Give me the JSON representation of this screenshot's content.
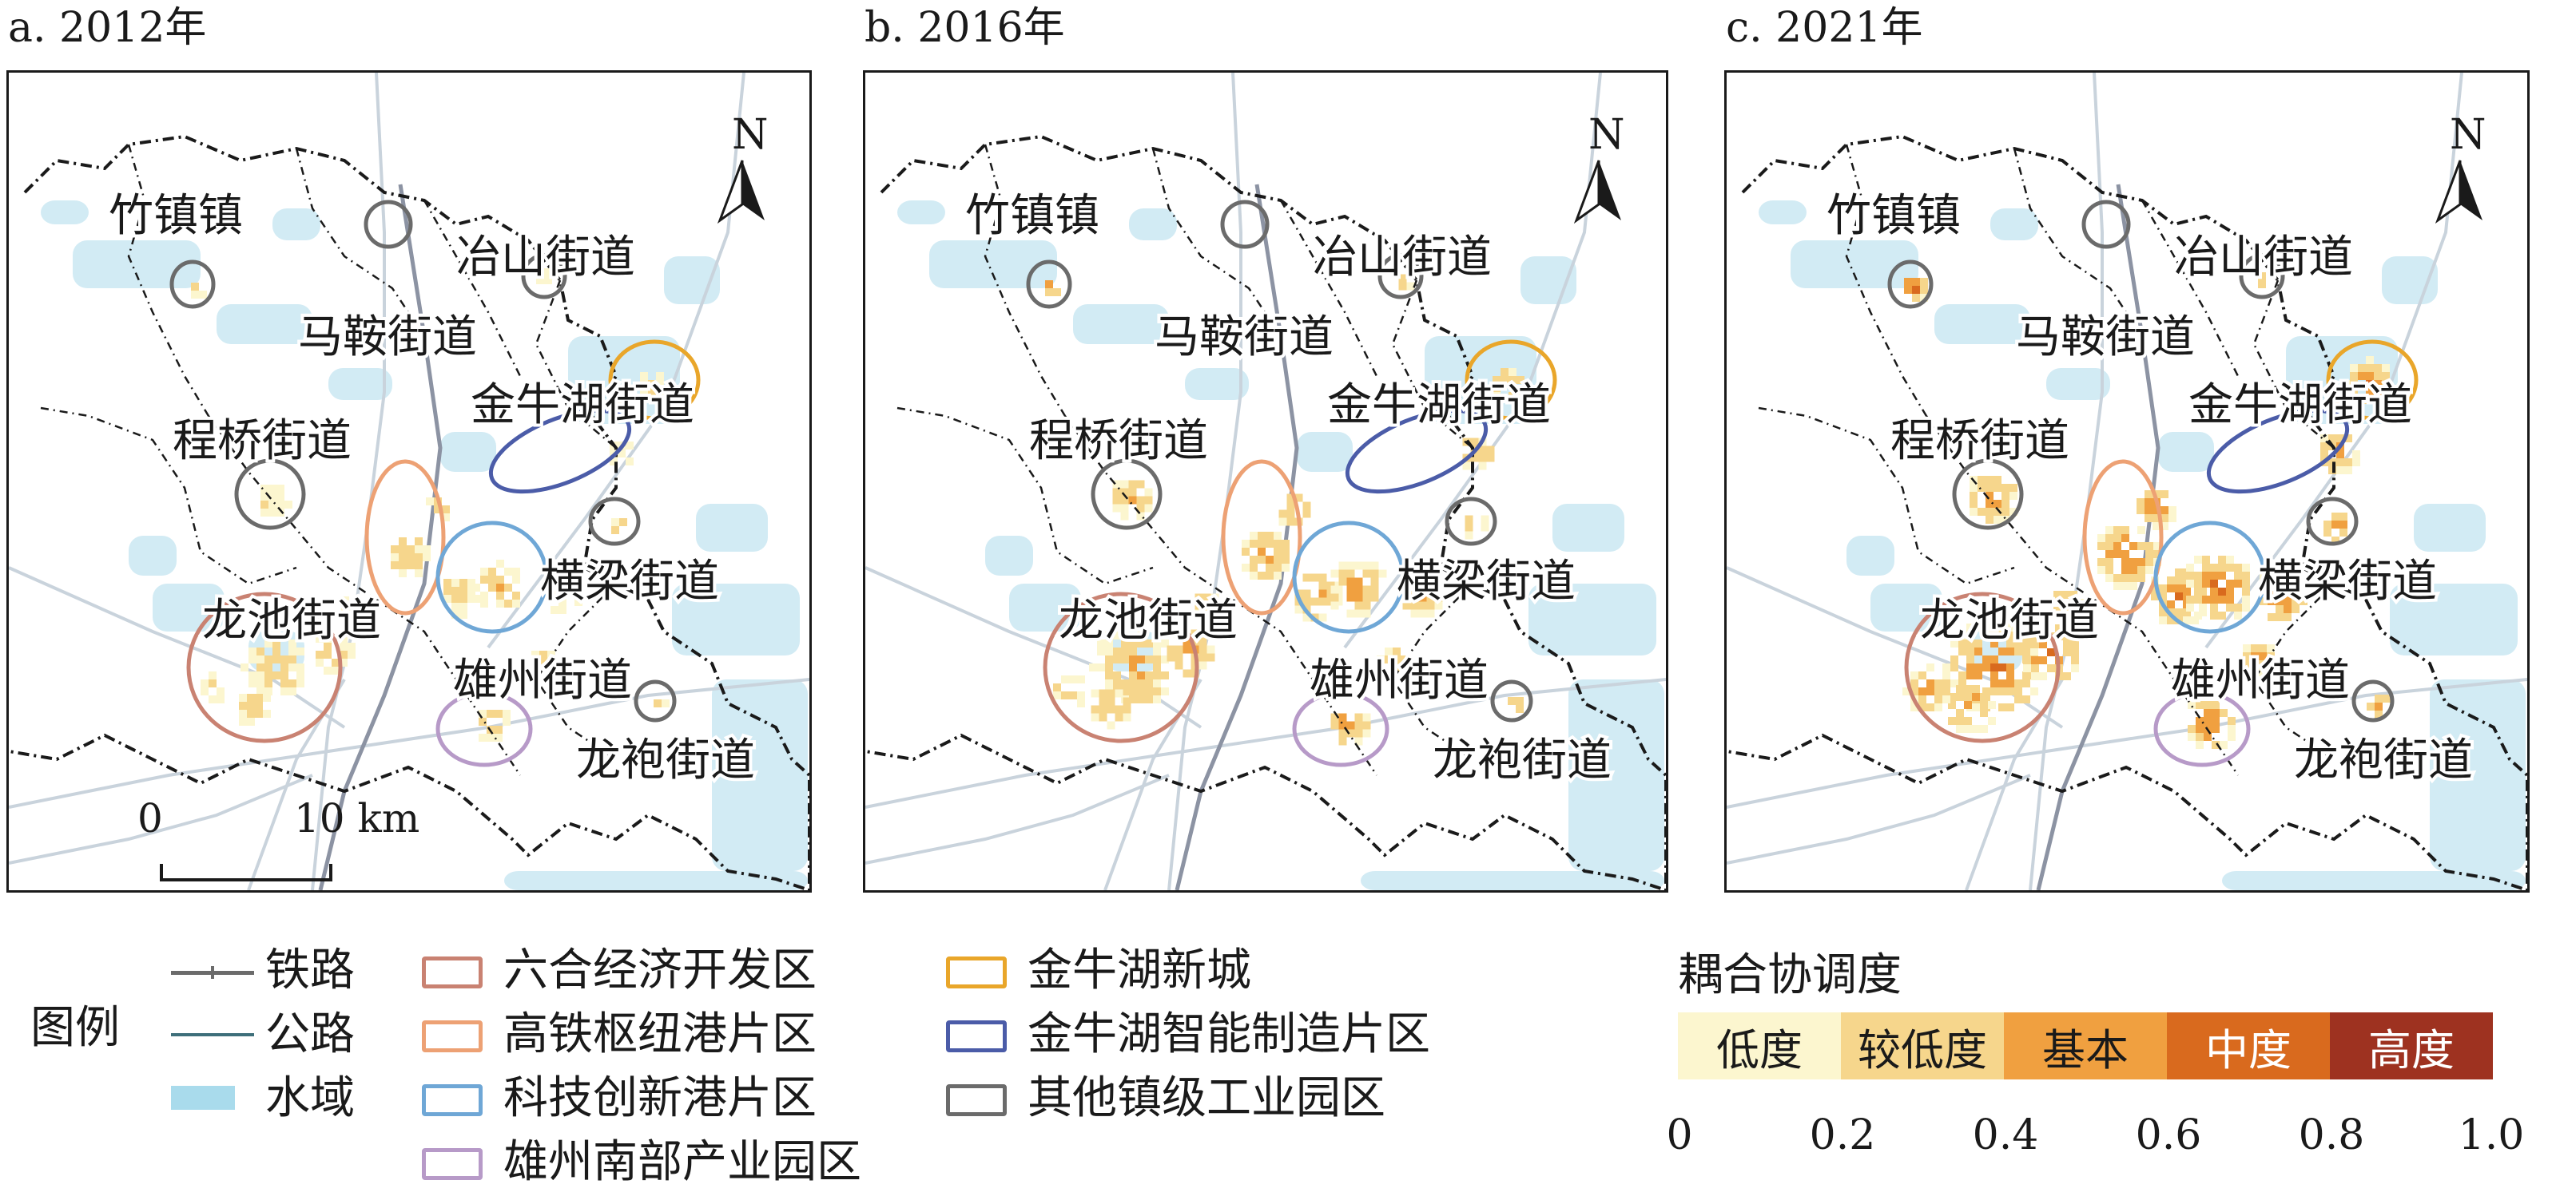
{
  "panels": [
    {
      "title": "a. 2012年",
      "year": 2012
    },
    {
      "title": "b. 2016年",
      "year": 2016
    },
    {
      "title": "c. 2021年",
      "year": 2021
    }
  ],
  "north_label": "N",
  "scale_bar": {
    "start": "0",
    "end": "10 km"
  },
  "place_labels": [
    "竹镇镇",
    "冶山街道",
    "马鞍街道",
    "金牛湖街道",
    "程桥街道",
    "横梁街道",
    "龙池街道",
    "雄州街道",
    "龙袍街道"
  ],
  "legend": {
    "title": "图例",
    "lines": [
      {
        "label": "铁路",
        "icon": "railway-line-icon",
        "color": "#6b6b6b"
      },
      {
        "label": "公路",
        "icon": "road-line-icon",
        "color": "#3e6f7a"
      },
      {
        "label": "水域",
        "icon": "water-fill-icon",
        "color": "#a9dbec"
      }
    ],
    "zones": [
      {
        "label": "六合经济开发区",
        "color": "#c98272"
      },
      {
        "label": "高铁枢纽港片区",
        "color": "#eda174"
      },
      {
        "label": "科技创新港片区",
        "color": "#6fa7d6"
      },
      {
        "label": "雄州南部产业园区",
        "color": "#b79ac8"
      },
      {
        "label": "金牛湖新城",
        "color": "#e9a62a"
      },
      {
        "label": "金牛湖智能制造片区",
        "color": "#4b5ca8"
      },
      {
        "label": "其他镇级工业园区",
        "color": "#6b6b6b"
      }
    ]
  },
  "coupling_legend": {
    "title": "耦合协调度",
    "classes": [
      {
        "label": "低度",
        "color": "#fcf6cf"
      },
      {
        "label": "较低度",
        "color": "#f6d68c"
      },
      {
        "label": "基本",
        "color": "#f0a040"
      },
      {
        "label": "中度",
        "color": "#d96a1e"
      },
      {
        "label": "高度",
        "color": "#9e3220"
      }
    ],
    "ticks": [
      "0",
      "0.2",
      "0.4",
      "0.6",
      "0.8",
      "1.0"
    ]
  }
}
